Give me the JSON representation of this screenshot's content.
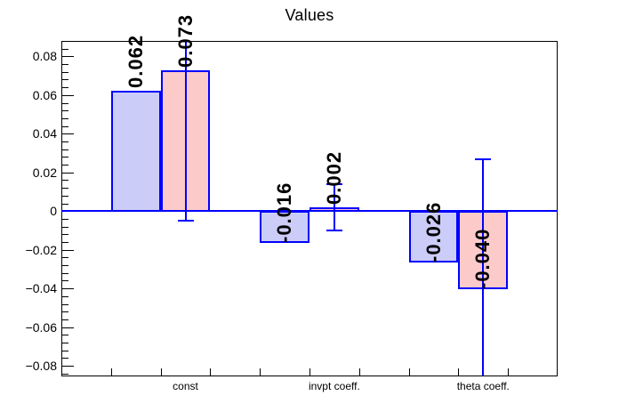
{
  "page_title": "Values",
  "chart_data": {
    "type": "bar",
    "title": "Values",
    "categories": [
      "const",
      "invpt coeff.",
      "theta coeff."
    ],
    "series": [
      {
        "name": "blue",
        "fill_color": "#ccccf8",
        "line_color": "#0000ff",
        "values": [
          0.062,
          -0.016,
          -0.026
        ],
        "value_labels": [
          "0.062",
          "-0.016",
          "-0.026"
        ]
      },
      {
        "name": "pink",
        "fill_color": "#fdcaca",
        "line_color": "#0000ff",
        "values": [
          0.073,
          0.002,
          -0.04
        ],
        "value_labels": [
          "0.073",
          "0.002",
          "-0.040"
        ],
        "errors": [
          0.078,
          0.012,
          0.067
        ]
      }
    ],
    "ylim": [
      -0.0855,
      0.088
    ],
    "y_major_tick_values": [
      0.08,
      0.06,
      0.04,
      0.02,
      0,
      -0.02,
      -0.04,
      -0.06,
      -0.08
    ],
    "y_tick_labels": [
      "0.08",
      "0.06",
      "0.04",
      "0.02",
      "0",
      "−0.02",
      "−0.04",
      "−0.06",
      "−0.08"
    ],
    "y_minor_step": 0.004,
    "n_bins": 10,
    "bar_bins": [
      [
        1,
        2
      ],
      [
        4,
        5
      ],
      [
        7,
        8
      ]
    ],
    "grid": false,
    "legend": null,
    "zero_line_color": "#0000ff",
    "frame_color": "#000000",
    "background_color": "#ffffff",
    "error_cap_width": 18
  }
}
